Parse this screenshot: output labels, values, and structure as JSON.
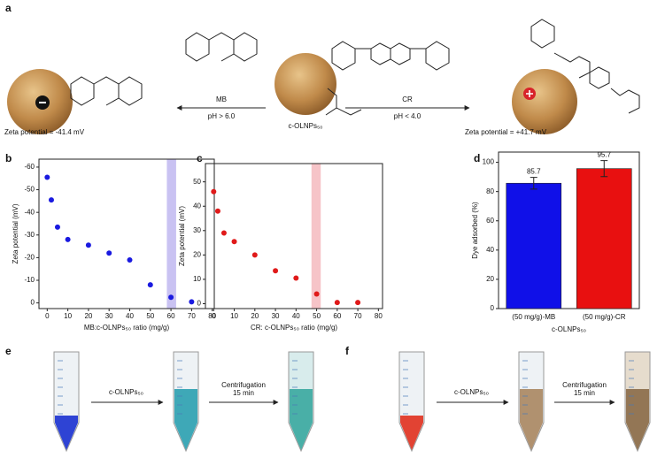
{
  "scheme": {
    "label": "a",
    "left_reagent": "MB",
    "left_condition": "pH > 6.0",
    "right_reagent": "CR",
    "right_condition": "pH < 4.0",
    "center_label": "c-OLNPs₅₀",
    "left_zeta": "Zeta potential = -41.4 mV",
    "right_zeta": "Zeta potential = +41.7 mV"
  },
  "chart_data": [
    {
      "label": "b",
      "type": "scatter",
      "xlabel": "MB:c-OLNPs₅₀ ratio (mg/g)",
      "ylabel": "Zeta potential (mV)",
      "x": [
        0,
        2,
        5,
        10,
        20,
        30,
        40,
        50,
        60,
        70
      ],
      "values": [
        -55.5,
        -45.5,
        -33.5,
        -28,
        -25.5,
        -22,
        -19,
        -8,
        -2.5,
        -0.5
      ],
      "color": "#1a1ae0",
      "xlim": [
        -4,
        81
      ],
      "ylim": [
        2.5,
        -63.5
      ],
      "xticks": [
        0,
        10,
        20,
        30,
        40,
        50,
        60,
        70,
        80
      ],
      "yticks": [
        -60,
        -50,
        -40,
        -30,
        -20,
        -10,
        0
      ],
      "highlight_range": [
        58,
        62.5
      ],
      "highlight_color": "#c9c2f2"
    },
    {
      "label": "c",
      "type": "scatter",
      "xlabel": "CR: c-OLNPs₅₀ ratio (mg/g)",
      "ylabel": "Zeta potential (mV)",
      "x": [
        0,
        2,
        5,
        10,
        20,
        30,
        40,
        50,
        60,
        70
      ],
      "values": [
        46,
        38,
        29,
        25.5,
        20,
        13.5,
        10.5,
        4,
        0.5,
        0.5
      ],
      "color": "#e01a1a",
      "xlim": [
        -4,
        82
      ],
      "ylim": [
        -2,
        57.5
      ],
      "xticks": [
        0,
        10,
        20,
        30,
        40,
        50,
        60,
        70,
        80
      ],
      "yticks": [
        0,
        10,
        20,
        30,
        40,
        50
      ],
      "highlight_range": [
        47.5,
        52
      ],
      "highlight_color": "#f6c4c8"
    },
    {
      "label": "d",
      "type": "bar",
      "xlabel": "c-OLNPs₅₀",
      "ylabel": "Dye adsorbed (%)",
      "categories": [
        "(50 mg/g)-MB",
        "(50 mg/g)-CR"
      ],
      "values": [
        85.7,
        95.7
      ],
      "errors": [
        4,
        5.5
      ],
      "colors": [
        "#1010e8",
        "#e81010"
      ],
      "ylim": [
        0,
        107
      ],
      "yticks": [
        0,
        20,
        40,
        60,
        80,
        100
      ]
    }
  ],
  "photos": [
    {
      "label": "e",
      "additive": "c-OLNPs₅₀",
      "step": "Centrifugation",
      "duration": "15 min"
    },
    {
      "label": "f",
      "additive": "c-OLNPs₅₀",
      "step": "Centrifugation",
      "duration": "15 min"
    }
  ]
}
